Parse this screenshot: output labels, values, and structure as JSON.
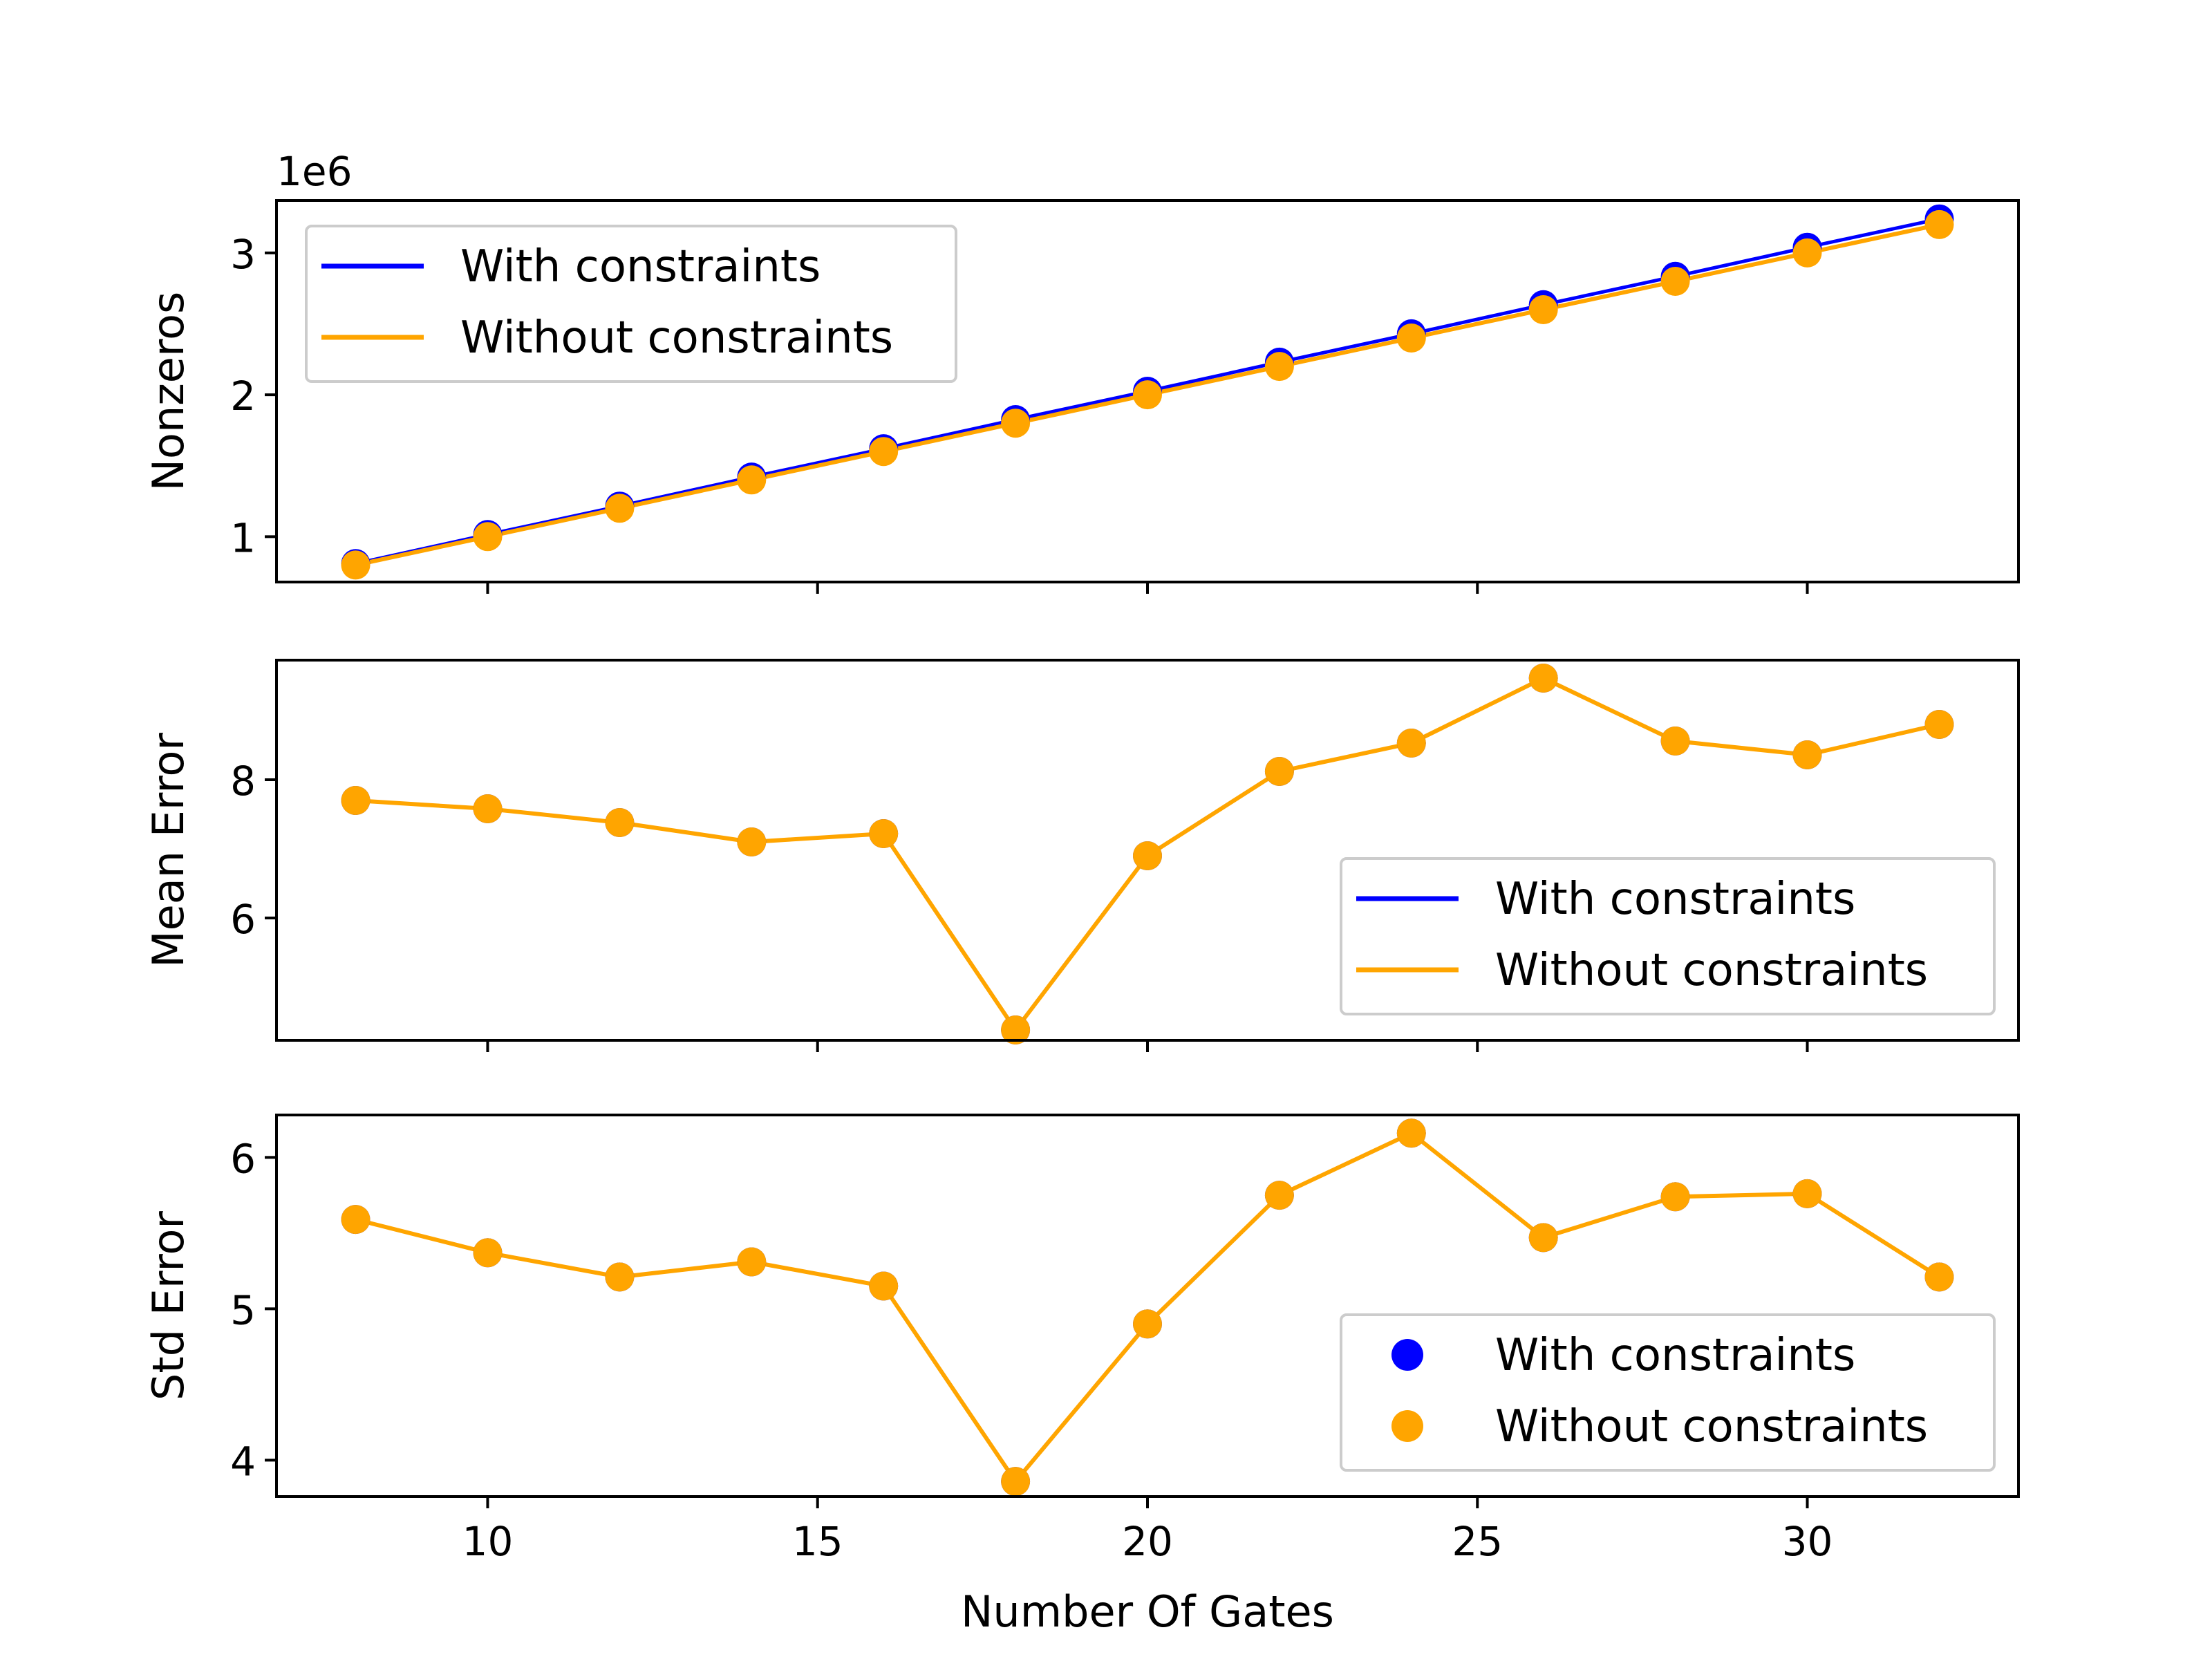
{
  "figure": {
    "xlabel": "Number Of Gates",
    "x_ticks": [
      10,
      15,
      20,
      25,
      30
    ],
    "xlim": [
      6.8,
      33.2
    ]
  },
  "colors": {
    "with": "#0000ff",
    "without": "#ffa500"
  },
  "chart_data": [
    {
      "type": "line",
      "ylabel": "Nonzeros",
      "offset_text": "1e6",
      "ylim": [
        0.68,
        3.37
      ],
      "y_ticks": [
        1,
        2,
        3
      ],
      "legend_style": "line",
      "legend_position": "upper-left",
      "x": [
        8,
        10,
        12,
        14,
        16,
        18,
        20,
        22,
        24,
        26,
        28,
        30,
        32
      ],
      "series": [
        {
          "name": "With constraints",
          "color": "with",
          "values": [
            0.81,
            1.015,
            1.215,
            1.42,
            1.62,
            1.825,
            2.025,
            2.23,
            2.43,
            2.635,
            2.835,
            3.04,
            3.24
          ]
        },
        {
          "name": "Without constraints",
          "color": "without",
          "values": [
            0.8,
            1.0,
            1.2,
            1.4,
            1.6,
            1.8,
            2.0,
            2.2,
            2.4,
            2.6,
            2.8,
            3.0,
            3.2
          ]
        }
      ]
    },
    {
      "type": "line",
      "ylabel": "Mean Error",
      "ylim": [
        4.23,
        9.73
      ],
      "y_ticks": [
        6,
        8
      ],
      "legend_style": "line",
      "legend_position": "lower-right",
      "x": [
        8,
        10,
        12,
        14,
        16,
        18,
        20,
        22,
        24,
        26,
        28,
        30,
        32
      ],
      "series": [
        {
          "name": "With constraints",
          "color": "with",
          "values": [
            7.7,
            7.58,
            7.38,
            7.1,
            7.22,
            4.38,
            6.9,
            8.12,
            8.53,
            9.47,
            8.56,
            8.36,
            8.8
          ]
        },
        {
          "name": "Without constraints",
          "color": "without",
          "values": [
            7.7,
            7.58,
            7.38,
            7.1,
            7.22,
            4.38,
            6.9,
            8.12,
            8.53,
            9.47,
            8.56,
            8.36,
            8.8
          ]
        }
      ]
    },
    {
      "type": "line",
      "ylabel": "Std Error",
      "ylim": [
        3.76,
        6.28
      ],
      "y_ticks": [
        4,
        5,
        6
      ],
      "legend_style": "marker",
      "legend_position": "lower-right",
      "x": [
        8,
        10,
        12,
        14,
        16,
        18,
        20,
        22,
        24,
        26,
        28,
        30,
        32
      ],
      "series": [
        {
          "name": "With constraints",
          "color": "with",
          "values": [
            5.59,
            5.37,
            5.21,
            5.31,
            5.15,
            3.86,
            4.9,
            5.75,
            6.16,
            5.47,
            5.74,
            5.76,
            5.21
          ]
        },
        {
          "name": "Without constraints",
          "color": "without",
          "values": [
            5.59,
            5.37,
            5.21,
            5.31,
            5.15,
            3.86,
            4.9,
            5.75,
            6.16,
            5.47,
            5.74,
            5.76,
            5.21
          ]
        }
      ]
    }
  ]
}
